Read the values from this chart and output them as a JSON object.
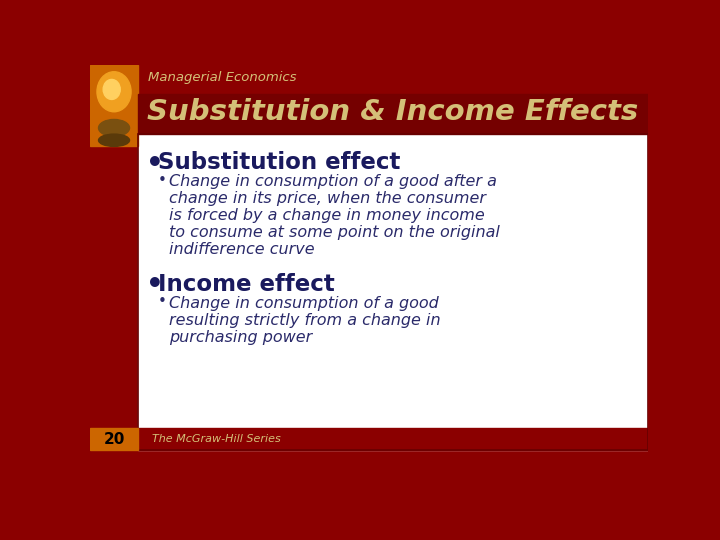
{
  "slide_number": "20",
  "top_label": "Managerial Economics",
  "title": "Substitution & Income Effects",
  "header_bg": "#8B0000",
  "header_text_color": "#D4C078",
  "title_text_color": "#D4C078",
  "content_bg": "#FFFFFF",
  "left_strip_color": "#CC6600",
  "bottom_bar_color": "#8B0000",
  "slide_num_color": "#CC6600",
  "slide_num_text_color": "#000000",
  "footer_text": "The McGraw-Hill Series",
  "footer_color": "#D4C078",
  "bullet1_header": "Substitution effect",
  "bullet1_header_color": "#1a1a5e",
  "bullet1_line1": "Change in consumption of a good after a",
  "bullet1_line2": "change in its price, when the consumer",
  "bullet1_line3": "is forced by a change in money income",
  "bullet1_line4": "to consume at some point on the original",
  "bullet1_line5": "indifference curve",
  "bullet1_text_color": "#2a2a6a",
  "bullet2_header": "Income effect",
  "bullet2_header_color": "#1a1a5e",
  "bullet2_line1": "Change in consumption of a good",
  "bullet2_line2": "resulting strictly from a change in",
  "bullet2_line3": "purchasing power",
  "bullet2_text_color": "#2a2a6a"
}
